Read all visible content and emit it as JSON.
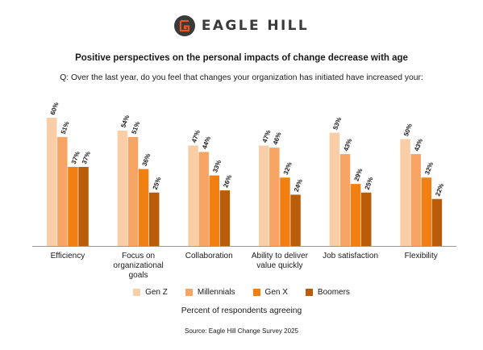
{
  "brand": {
    "name": "EAGLE HILL",
    "mark_color": "#3a3a3a",
    "accent": "#e8541c"
  },
  "title": "Positive perspectives on the personal impacts of change decrease with age",
  "question": "Q: Over the last year, do you feel that changes your organization has initiated have increased your:",
  "source": "Source: Eagle Hill Change Survey 2025",
  "chart_data": {
    "type": "bar",
    "categories": [
      [
        "Efficiency"
      ],
      [
        "Focus on",
        "organizational",
        "goals"
      ],
      [
        "Collaboration"
      ],
      [
        "Ability to deliver",
        "value quickly"
      ],
      [
        "Job satisfaction"
      ],
      [
        "Flexibility"
      ]
    ],
    "series": [
      {
        "name": "Gen Z",
        "color": "#f9cea7",
        "values": [
          60,
          54,
          47,
          47,
          53,
          50
        ],
        "labels": [
          "60%",
          "54%",
          "47%",
          "47%",
          "53%",
          "50%"
        ]
      },
      {
        "name": "Millennials",
        "color": "#f6a564",
        "values": [
          51,
          51,
          44,
          46,
          43,
          43
        ],
        "labels": [
          "51%",
          "51%",
          "44%",
          "46%",
          "43%",
          "43%"
        ]
      },
      {
        "name": "Gen X",
        "color": "#f27f12",
        "values": [
          37,
          36,
          33,
          32,
          29,
          32
        ],
        "labels": [
          "37%",
          "36%",
          "33%",
          "32%",
          "29%",
          "32%"
        ]
      },
      {
        "name": "Boomers",
        "color": "#bb5c0b",
        "values": [
          37,
          25,
          26,
          24,
          25,
          22
        ],
        "labels": [
          "37%",
          "25%",
          "26%",
          "24%",
          "25%",
          "22%"
        ]
      }
    ],
    "xlabel": "Percent of respondents agreeing",
    "ylim": [
      0,
      100
    ],
    "grid": false,
    "legend_position": "bottom"
  }
}
